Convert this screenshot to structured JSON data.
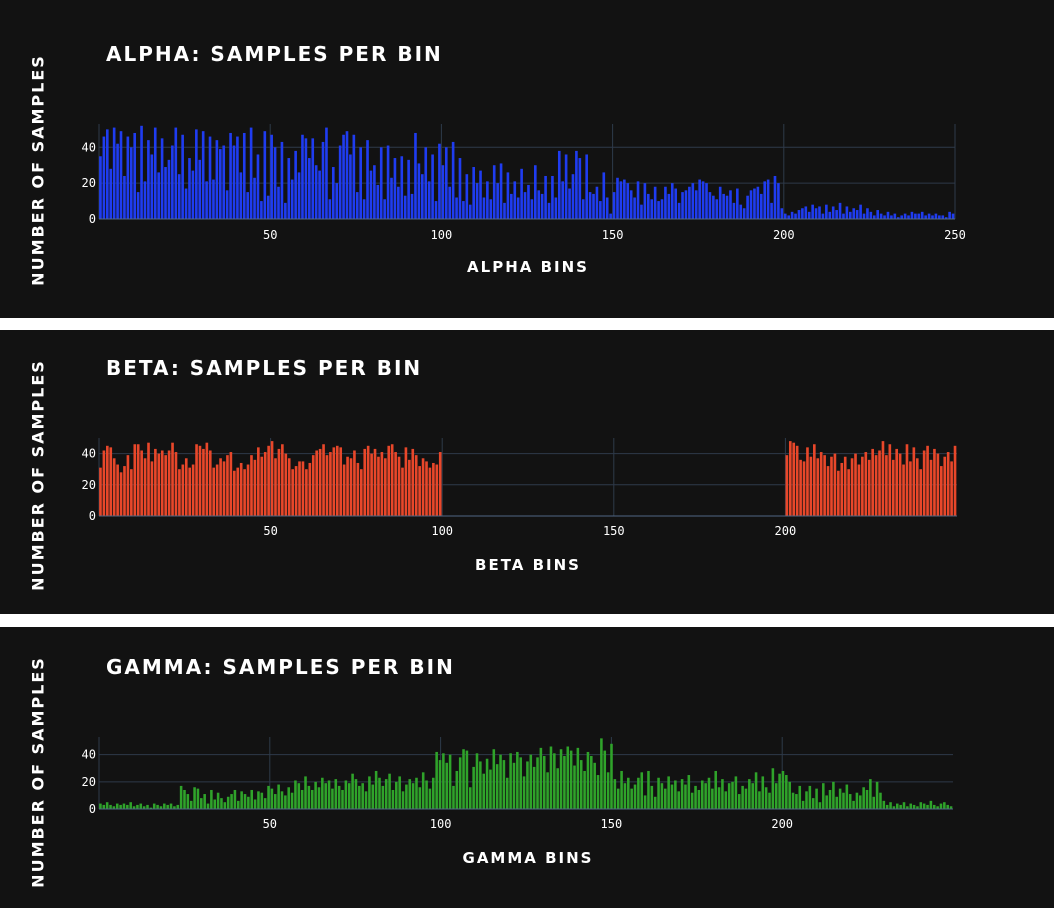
{
  "chart_data": [
    {
      "type": "bar",
      "title": "ALPHA: SAMPLES PER BIN",
      "xlabel": "ALPHA BINS",
      "ylabel": "NUMBER OF SAMPLES",
      "xlim": [
        0,
        250
      ],
      "ylim": [
        0,
        53
      ],
      "xticks": [
        50,
        100,
        150,
        200,
        250
      ],
      "yticks": [
        0,
        20,
        40
      ],
      "color": "#1f3cf0",
      "grid": true,
      "x": "bins 1-250",
      "values": [
        35,
        46,
        50,
        28,
        51,
        42,
        49,
        24,
        46,
        40,
        48,
        15,
        52,
        21,
        44,
        36,
        51,
        26,
        45,
        29,
        33,
        41,
        51,
        25,
        47,
        17,
        34,
        27,
        50,
        33,
        49,
        21,
        46,
        22,
        44,
        39,
        41,
        16,
        48,
        41,
        46,
        26,
        48,
        15,
        51,
        23,
        36,
        10,
        49,
        13,
        47,
        40,
        18,
        43,
        9,
        34,
        22,
        38,
        26,
        47,
        45,
        34,
        45,
        30,
        27,
        43,
        51,
        11,
        29,
        20,
        41,
        47,
        49,
        36,
        47,
        15,
        40,
        11,
        44,
        27,
        30,
        19,
        40,
        11,
        41,
        23,
        34,
        18,
        35,
        13,
        33,
        14,
        48,
        31,
        25,
        40,
        21,
        36,
        10,
        42,
        30,
        40,
        18,
        43,
        12,
        34,
        10,
        25,
        8,
        29,
        20,
        27,
        12,
        21,
        11,
        30,
        20,
        31,
        9,
        26,
        14,
        21,
        12,
        28,
        15,
        19,
        11,
        30,
        16,
        14,
        24,
        9,
        24,
        12,
        38,
        21,
        36,
        17,
        25,
        38,
        34,
        11,
        36,
        15,
        14,
        18,
        10,
        26,
        12,
        3,
        15,
        23,
        21,
        22,
        20,
        16,
        12,
        21,
        8,
        20,
        14,
        11,
        18,
        10,
        11,
        18,
        14,
        20,
        17,
        9,
        15,
        16,
        18,
        20,
        16,
        22,
        21,
        20,
        15,
        13,
        11,
        18,
        14,
        13,
        16,
        9,
        17,
        8,
        6,
        13,
        16,
        17,
        18,
        14,
        21,
        22,
        9,
        24,
        20,
        6,
        3,
        2,
        4,
        3,
        5,
        6,
        7,
        4,
        8,
        6,
        7,
        3,
        8,
        4,
        7,
        5,
        9,
        3,
        7,
        4,
        6,
        5,
        8,
        3,
        6,
        4,
        2,
        5,
        3,
        2,
        4,
        2,
        3,
        1,
        2,
        3,
        2,
        4,
        3,
        3,
        4,
        2,
        3,
        2,
        3,
        2,
        2,
        1,
        4,
        3
      ]
    },
    {
      "type": "bar",
      "title": "BETA: SAMPLES PER BIN",
      "xlabel": "BETA BINS",
      "ylabel": "NUMBER OF SAMPLES",
      "xlim": [
        0,
        250
      ],
      "ylim": [
        0,
        50
      ],
      "xticks": [
        50,
        100,
        150,
        200
      ],
      "yticks": [
        0,
        20,
        40
      ],
      "color": "#e8472a",
      "grid": true,
      "x": "bins 1-250",
      "values": [
        31,
        42,
        45,
        44,
        37,
        33,
        28,
        32,
        39,
        30,
        46,
        46,
        42,
        37,
        47,
        35,
        43,
        40,
        42,
        39,
        42,
        47,
        41,
        30,
        33,
        37,
        31,
        33,
        46,
        45,
        43,
        47,
        42,
        31,
        33,
        37,
        35,
        39,
        41,
        29,
        31,
        34,
        30,
        33,
        39,
        36,
        44,
        38,
        41,
        45,
        48,
        37,
        43,
        46,
        40,
        37,
        30,
        32,
        35,
        35,
        30,
        34,
        39,
        42,
        43,
        46,
        39,
        41,
        44,
        45,
        44,
        33,
        38,
        37,
        42,
        34,
        30,
        43,
        45,
        40,
        43,
        38,
        41,
        37,
        45,
        46,
        41,
        38,
        31,
        44,
        36,
        43,
        39,
        32,
        37,
        35,
        31,
        34,
        33,
        41,
        0,
        0,
        0,
        0,
        0,
        0,
        0,
        0,
        0,
        0,
        0,
        0,
        0,
        0,
        0,
        0,
        0,
        0,
        0,
        0,
        0,
        0,
        0,
        0,
        0,
        0,
        0,
        0,
        0,
        0,
        0,
        0,
        0,
        0,
        0,
        0,
        0,
        0,
        0,
        0,
        0,
        0,
        0,
        0,
        0,
        0,
        0,
        0,
        0,
        0,
        0,
        0,
        0,
        0,
        0,
        0,
        0,
        0,
        0,
        0,
        0,
        0,
        0,
        0,
        0,
        0,
        0,
        0,
        0,
        0,
        0,
        0,
        0,
        0,
        0,
        0,
        0,
        0,
        0,
        0,
        0,
        0,
        0,
        0,
        0,
        0,
        0,
        0,
        0,
        0,
        0,
        0,
        0,
        0,
        0,
        0,
        0,
        0,
        0,
        0,
        39,
        48,
        47,
        45,
        36,
        35,
        44,
        38,
        46,
        37,
        41,
        39,
        32,
        38,
        40,
        29,
        34,
        38,
        30,
        37,
        40,
        33,
        38,
        41,
        36,
        43,
        39,
        42,
        48,
        39,
        46,
        36,
        43,
        40,
        33,
        46,
        35,
        44,
        37,
        30,
        42,
        45,
        36,
        43,
        40,
        32,
        38,
        41,
        35,
        45
      ]
    },
    {
      "type": "bar",
      "title": "GAMMA: SAMPLES PER BIN",
      "xlabel": "GAMMA BINS",
      "ylabel": "NUMBER OF SAMPLES",
      "xlim": [
        0,
        250
      ],
      "ylim": [
        0,
        53
      ],
      "xticks": [
        50,
        100,
        150,
        200
      ],
      "yticks": [
        0,
        20,
        40
      ],
      "color": "#2fa32a",
      "grid": true,
      "x": "bins 1-250",
      "values": [
        4,
        3,
        5,
        3,
        2,
        4,
        3,
        4,
        3,
        5,
        2,
        3,
        4,
        2,
        3,
        1,
        4,
        3,
        2,
        4,
        3,
        4,
        2,
        3,
        17,
        14,
        11,
        6,
        16,
        15,
        8,
        11,
        4,
        14,
        7,
        12,
        8,
        5,
        9,
        11,
        14,
        6,
        13,
        11,
        9,
        14,
        7,
        13,
        12,
        8,
        17,
        15,
        11,
        18,
        13,
        10,
        16,
        12,
        21,
        19,
        14,
        24,
        17,
        14,
        20,
        16,
        23,
        19,
        21,
        15,
        22,
        17,
        14,
        21,
        19,
        26,
        22,
        17,
        19,
        13,
        24,
        18,
        28,
        23,
        17,
        22,
        26,
        14,
        20,
        24,
        13,
        18,
        22,
        19,
        23,
        16,
        27,
        21,
        15,
        23,
        42,
        36,
        41,
        34,
        40,
        17,
        28,
        38,
        44,
        43,
        16,
        31,
        41,
        35,
        26,
        37,
        29,
        44,
        33,
        40,
        36,
        23,
        41,
        34,
        42,
        38,
        24,
        35,
        40,
        31,
        38,
        45,
        39,
        27,
        46,
        41,
        30,
        44,
        39,
        46,
        43,
        32,
        45,
        36,
        28,
        42,
        39,
        34,
        25,
        52,
        43,
        27,
        48,
        22,
        15,
        28,
        19,
        23,
        15,
        18,
        23,
        27,
        10,
        28,
        17,
        9,
        23,
        19,
        15,
        24,
        18,
        21,
        13,
        22,
        18,
        25,
        12,
        17,
        14,
        21,
        19,
        23,
        15,
        28,
        16,
        22,
        13,
        19,
        20,
        24,
        11,
        17,
        15,
        22,
        19,
        27,
        13,
        24,
        16,
        12,
        30,
        19,
        26,
        28,
        25,
        20,
        12,
        11,
        17,
        6,
        13,
        17,
        8,
        15,
        5,
        19,
        10,
        14,
        20,
        9,
        15,
        12,
        18,
        11,
        6,
        12,
        10,
        16,
        14,
        22,
        9,
        20,
        12,
        6,
        3,
        5,
        2,
        4,
        3,
        5,
        2,
        4,
        3,
        2,
        5,
        4,
        3,
        6,
        3,
        2,
        4,
        5,
        3,
        2
      ]
    }
  ]
}
